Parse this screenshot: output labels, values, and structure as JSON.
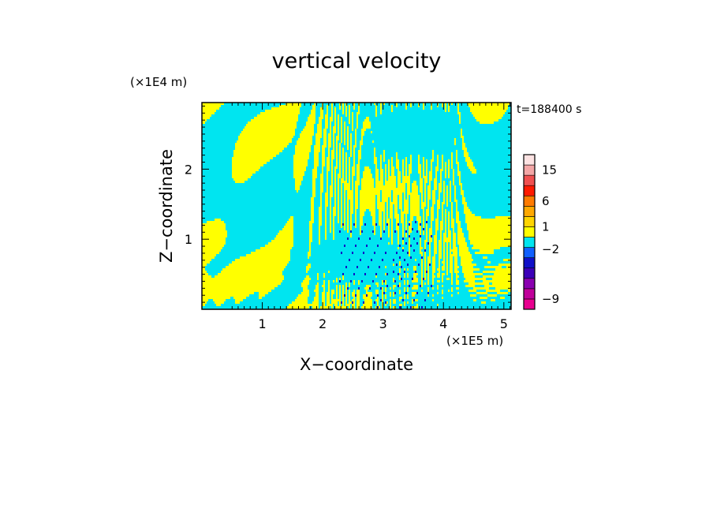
{
  "chart_data": {
    "type": "heatmap",
    "title": "vertical velocity",
    "xlabel": "X−coordinate",
    "ylabel": "Z−coordinate",
    "x_unit": "(×1E5 m)",
    "y_unit": "(×1E4 m)",
    "time_label": "t=188400 s",
    "xlim": [
      0,
      5.12
    ],
    "ylim": [
      0,
      2.95
    ],
    "x_ticks": [
      1,
      2,
      3,
      4,
      5
    ],
    "y_ticks": [
      1,
      2
    ],
    "x_tick_labels": [
      "1",
      "2",
      "3",
      "4",
      "5"
    ],
    "y_tick_labels": [
      "1",
      "2"
    ],
    "colorbar": {
      "levels": [
        {
          "color": "#e8008f"
        },
        {
          "color": "#c0009a"
        },
        {
          "color": "#8a00b0"
        },
        {
          "color": "#3c00b8"
        },
        {
          "color": "#1010c8"
        },
        {
          "color": "#1060ff"
        },
        {
          "color": "#00e5f0"
        },
        {
          "color": "#ffff00"
        },
        {
          "color": "#ffd400"
        },
        {
          "color": "#ffa800"
        },
        {
          "color": "#ff7a00"
        },
        {
          "color": "#ff1a00"
        },
        {
          "color": "#f05050"
        },
        {
          "color": "#f3a6a6"
        },
        {
          "color": "#fce2e2"
        }
      ],
      "labels": [
        {
          "text": "−9",
          "level": 1
        },
        {
          "text": "−2",
          "level": 5.8
        },
        {
          "text": "1",
          "level": 8
        },
        {
          "text": "6",
          "level": 10.5
        },
        {
          "text": "15",
          "level": 13.5
        }
      ]
    },
    "field_colors": {
      "negative": "#00e5f0",
      "positive": "#ffff00",
      "strong_negative": "#1010c8",
      "strong_positive": "#ff7a00"
    }
  }
}
